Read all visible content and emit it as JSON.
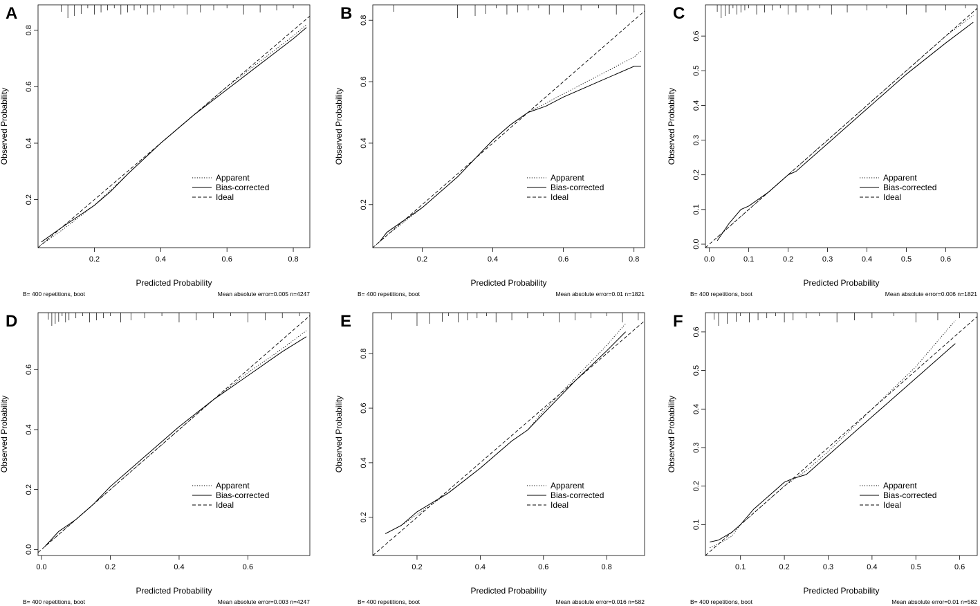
{
  "chart_data": [
    {
      "type": "line",
      "panel": "A",
      "xlabel": "Predicted Probability",
      "ylabel": "Observed Probability",
      "xlim": [
        0.03,
        0.85
      ],
      "ylim": [
        0.03,
        0.89
      ],
      "xticks": [
        0.2,
        0.4,
        0.6,
        0.8
      ],
      "yticks": [
        0.2,
        0.4,
        0.6,
        0.8
      ],
      "legend": [
        "Apparent",
        "Bias-corrected",
        "Ideal"
      ],
      "footer_left": "B= 400 repetitions, boot",
      "footer_right": "Mean absolute error=0.005 n=4247",
      "rug": [
        0.1,
        0.12,
        0.14,
        0.16,
        0.18,
        0.2,
        0.22,
        0.24,
        0.26,
        0.28,
        0.3,
        0.32,
        0.34,
        0.36,
        0.38,
        0.4,
        0.44,
        0.48,
        0.52,
        0.56,
        0.6,
        0.65,
        0.7,
        0.75,
        0.8
      ],
      "series": [
        {
          "name": "Apparent",
          "x": [
            0.04,
            0.1,
            0.2,
            0.3,
            0.4,
            0.5,
            0.6,
            0.7,
            0.8,
            0.84
          ],
          "y": [
            0.04,
            0.09,
            0.18,
            0.29,
            0.4,
            0.5,
            0.6,
            0.69,
            0.78,
            0.82
          ]
        },
        {
          "name": "Bias-corrected",
          "x": [
            0.04,
            0.1,
            0.2,
            0.25,
            0.3,
            0.4,
            0.5,
            0.6,
            0.7,
            0.8,
            0.84
          ],
          "y": [
            0.05,
            0.1,
            0.18,
            0.23,
            0.29,
            0.4,
            0.5,
            0.59,
            0.68,
            0.77,
            0.81
          ]
        },
        {
          "name": "Ideal",
          "x": [
            0.03,
            0.85
          ],
          "y": [
            0.03,
            0.85
          ]
        }
      ]
    },
    {
      "type": "line",
      "panel": "B",
      "xlabel": "Predicted Probability",
      "ylabel": "Observed Probability",
      "xlim": [
        0.06,
        0.83
      ],
      "ylim": [
        0.06,
        0.85
      ],
      "xticks": [
        0.2,
        0.4,
        0.6,
        0.8
      ],
      "yticks": [
        0.2,
        0.4,
        0.6,
        0.8
      ],
      "legend": [
        "Apparent",
        "Bias-corrected",
        "Ideal"
      ],
      "footer_left": "B= 400 repetitions, boot",
      "footer_right": "Mean absolute error=0.01 n=1821",
      "rug": [
        0.12,
        0.3,
        0.35,
        0.38,
        0.41,
        0.44,
        0.47,
        0.5,
        0.53,
        0.56,
        0.6,
        0.65,
        0.7,
        0.75,
        0.8
      ],
      "series": [
        {
          "name": "Apparent",
          "x": [
            0.07,
            0.1,
            0.2,
            0.3,
            0.35,
            0.4,
            0.45,
            0.5,
            0.55,
            0.6,
            0.7,
            0.8,
            0.82
          ],
          "y": [
            0.07,
            0.1,
            0.19,
            0.29,
            0.35,
            0.41,
            0.46,
            0.5,
            0.53,
            0.56,
            0.62,
            0.68,
            0.7
          ]
        },
        {
          "name": "Bias-corrected",
          "x": [
            0.08,
            0.1,
            0.2,
            0.3,
            0.35,
            0.4,
            0.45,
            0.5,
            0.55,
            0.6,
            0.7,
            0.8,
            0.82
          ],
          "y": [
            0.08,
            0.11,
            0.19,
            0.29,
            0.35,
            0.41,
            0.46,
            0.5,
            0.52,
            0.55,
            0.6,
            0.65,
            0.65
          ]
        },
        {
          "name": "Ideal",
          "x": [
            0.06,
            0.83
          ],
          "y": [
            0.06,
            0.83
          ]
        }
      ]
    },
    {
      "type": "line",
      "panel": "C",
      "xlabel": "Predicted Probability",
      "ylabel": "Observed Probability",
      "xlim": [
        -0.01,
        0.68
      ],
      "ylim": [
        -0.01,
        0.69
      ],
      "xticks": [
        0.0,
        0.1,
        0.2,
        0.3,
        0.4,
        0.5,
        0.6
      ],
      "yticks": [
        0.0,
        0.1,
        0.2,
        0.3,
        0.4,
        0.5,
        0.6
      ],
      "legend": [
        "Apparent",
        "Bias-corrected",
        "Ideal"
      ],
      "footer_left": "B= 400 repetitions, boot",
      "footer_right": "Mean absolute error=0.006 n=1821",
      "rug": [
        0.02,
        0.03,
        0.04,
        0.05,
        0.06,
        0.07,
        0.08,
        0.09,
        0.1,
        0.12,
        0.14,
        0.16,
        0.18,
        0.2,
        0.22,
        0.25,
        0.28,
        0.31,
        0.35,
        0.4,
        0.45,
        0.5,
        0.55,
        0.6,
        0.65
      ],
      "series": [
        {
          "name": "Apparent",
          "x": [
            0.02,
            0.05,
            0.08,
            0.1,
            0.15,
            0.2,
            0.25,
            0.3,
            0.4,
            0.5,
            0.6,
            0.67
          ],
          "y": [
            0.02,
            0.05,
            0.08,
            0.1,
            0.15,
            0.2,
            0.25,
            0.3,
            0.4,
            0.5,
            0.6,
            0.66
          ]
        },
        {
          "name": "Bias-corrected",
          "x": [
            0.02,
            0.05,
            0.08,
            0.1,
            0.15,
            0.2,
            0.22,
            0.25,
            0.3,
            0.4,
            0.5,
            0.6,
            0.67
          ],
          "y": [
            0.01,
            0.06,
            0.1,
            0.11,
            0.15,
            0.2,
            0.21,
            0.24,
            0.29,
            0.39,
            0.49,
            0.58,
            0.64
          ]
        },
        {
          "name": "Ideal",
          "x": [
            -0.01,
            0.68
          ],
          "y": [
            -0.01,
            0.68
          ]
        }
      ]
    },
    {
      "type": "line",
      "panel": "D",
      "xlabel": "Predicted Probability",
      "ylabel": "Observed Probability",
      "xlim": [
        -0.01,
        0.78
      ],
      "ylim": [
        -0.02,
        0.79
      ],
      "xticks": [
        0.0,
        0.2,
        0.4,
        0.6
      ],
      "yticks": [
        0.0,
        0.2,
        0.4,
        0.6
      ],
      "legend": [
        "Apparent",
        "Bias-corrected",
        "Ideal"
      ],
      "footer_left": "B= 400 repetitions, boot",
      "footer_right": "Mean absolute error=0.003 n=4247",
      "rug": [
        0.02,
        0.03,
        0.04,
        0.05,
        0.06,
        0.07,
        0.08,
        0.1,
        0.12,
        0.14,
        0.16,
        0.18,
        0.2,
        0.23,
        0.26,
        0.3,
        0.35,
        0.4,
        0.45,
        0.5,
        0.55,
        0.6,
        0.65,
        0.7,
        0.75
      ],
      "series": [
        {
          "name": "Apparent",
          "x": [
            0.01,
            0.05,
            0.1,
            0.2,
            0.3,
            0.4,
            0.5,
            0.6,
            0.7,
            0.77
          ],
          "y": [
            0.01,
            0.05,
            0.1,
            0.2,
            0.3,
            0.4,
            0.5,
            0.59,
            0.67,
            0.73
          ]
        },
        {
          "name": "Bias-corrected",
          "x": [
            0.01,
            0.05,
            0.1,
            0.15,
            0.2,
            0.25,
            0.3,
            0.4,
            0.5,
            0.6,
            0.7,
            0.77
          ],
          "y": [
            0.01,
            0.06,
            0.1,
            0.15,
            0.21,
            0.26,
            0.31,
            0.41,
            0.5,
            0.58,
            0.66,
            0.71
          ]
        },
        {
          "name": "Ideal",
          "x": [
            -0.01,
            0.78
          ],
          "y": [
            -0.01,
            0.78
          ]
        }
      ]
    },
    {
      "type": "line",
      "panel": "E",
      "xlabel": "Predicted Probability",
      "ylabel": "Observed Probability",
      "xlim": [
        0.06,
        0.92
      ],
      "ylim": [
        0.06,
        0.95
      ],
      "xticks": [
        0.2,
        0.4,
        0.6,
        0.8
      ],
      "yticks": [
        0.2,
        0.4,
        0.6,
        0.8
      ],
      "legend": [
        "Apparent",
        "Bias-corrected",
        "Ideal"
      ],
      "footer_left": "B= 400 repetitions, boot",
      "footer_right": "Mean absolute error=0.016 n=582",
      "rug": [
        0.12,
        0.2,
        0.24,
        0.28,
        0.3,
        0.33,
        0.36,
        0.39,
        0.42,
        0.45,
        0.5,
        0.55,
        0.6,
        0.65,
        0.7,
        0.75,
        0.8,
        0.85,
        0.9
      ],
      "series": [
        {
          "name": "Apparent",
          "x": [
            0.1,
            0.15,
            0.2,
            0.3,
            0.4,
            0.5,
            0.55,
            0.6,
            0.7,
            0.8,
            0.86
          ],
          "y": [
            0.14,
            0.17,
            0.21,
            0.29,
            0.38,
            0.48,
            0.52,
            0.59,
            0.71,
            0.83,
            0.91
          ]
        },
        {
          "name": "Bias-corrected",
          "x": [
            0.1,
            0.15,
            0.2,
            0.3,
            0.4,
            0.5,
            0.55,
            0.6,
            0.7,
            0.8,
            0.86
          ],
          "y": [
            0.14,
            0.17,
            0.22,
            0.29,
            0.38,
            0.48,
            0.52,
            0.58,
            0.7,
            0.81,
            0.88
          ]
        },
        {
          "name": "Ideal",
          "x": [
            0.06,
            0.92
          ],
          "y": [
            0.06,
            0.92
          ]
        }
      ]
    },
    {
      "type": "line",
      "panel": "F",
      "xlabel": "Predicted Probability",
      "ylabel": "Observed Probability",
      "xlim": [
        0.02,
        0.64
      ],
      "ylim": [
        0.02,
        0.65
      ],
      "xticks": [
        0.1,
        0.2,
        0.3,
        0.4,
        0.5,
        0.6
      ],
      "yticks": [
        0.1,
        0.2,
        0.3,
        0.4,
        0.5,
        0.6
      ],
      "legend": [
        "Apparent",
        "Bias-corrected",
        "Ideal"
      ],
      "footer_left": "B= 400 repetitions, boot",
      "footer_right": "Mean absolute error=0.01 n=582",
      "rug": [
        0.04,
        0.05,
        0.07,
        0.09,
        0.1,
        0.12,
        0.14,
        0.16,
        0.18,
        0.2,
        0.22,
        0.25,
        0.28,
        0.32,
        0.36,
        0.4,
        0.45,
        0.5,
        0.55,
        0.6
      ],
      "series": [
        {
          "name": "Apparent",
          "x": [
            0.03,
            0.05,
            0.08,
            0.1,
            0.15,
            0.2,
            0.25,
            0.3,
            0.4,
            0.5,
            0.59
          ],
          "y": [
            0.04,
            0.05,
            0.07,
            0.1,
            0.15,
            0.2,
            0.24,
            0.29,
            0.4,
            0.51,
            0.63
          ]
        },
        {
          "name": "Bias-corrected",
          "x": [
            0.03,
            0.05,
            0.08,
            0.1,
            0.13,
            0.15,
            0.2,
            0.22,
            0.25,
            0.28,
            0.3,
            0.4,
            0.5,
            0.59
          ],
          "y": [
            0.055,
            0.06,
            0.08,
            0.1,
            0.14,
            0.16,
            0.21,
            0.22,
            0.23,
            0.26,
            0.28,
            0.38,
            0.48,
            0.57
          ]
        },
        {
          "name": "Ideal",
          "x": [
            0.02,
            0.64
          ],
          "y": [
            0.02,
            0.64
          ]
        }
      ]
    }
  ]
}
